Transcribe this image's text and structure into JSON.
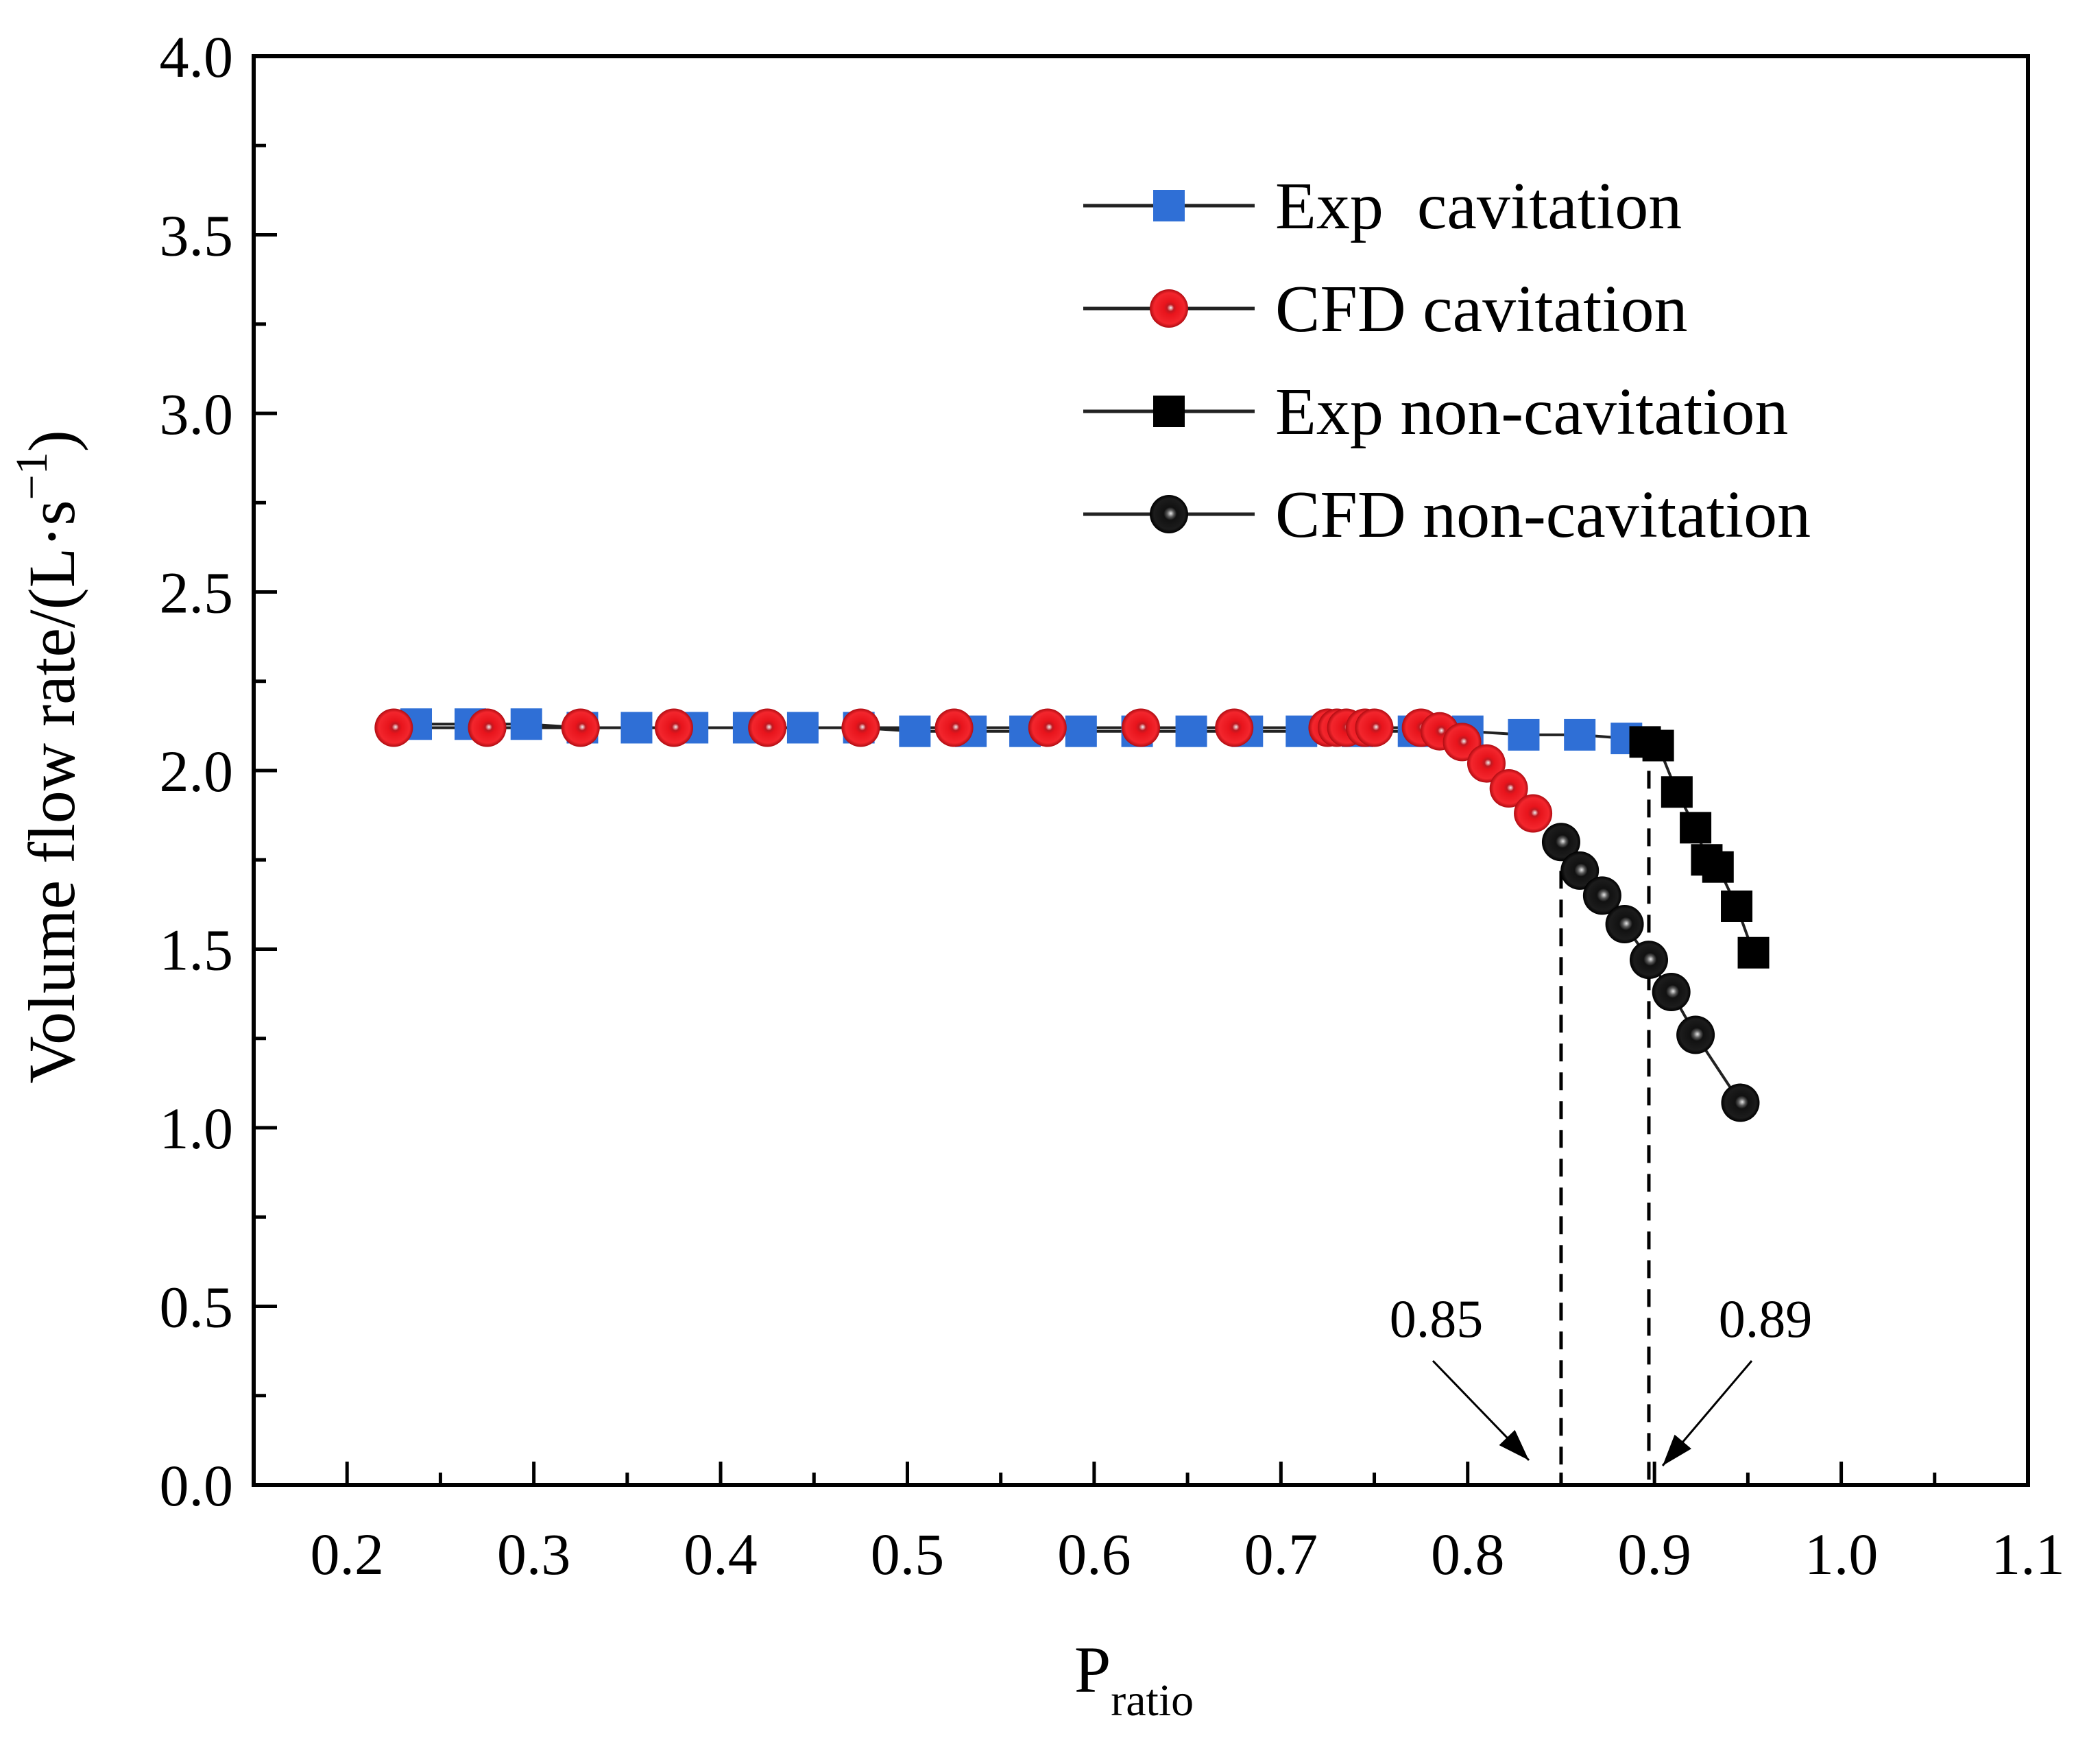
{
  "chart_data": {
    "type": "line",
    "xlabel": "P",
    "xlabel_sub": "ratio",
    "ylabel": "Volume flow rate/(L·s",
    "ylabel_sup": "−1",
    "ylabel_close": ")",
    "xlim": [
      0.15,
      1.1
    ],
    "ylim": [
      0.0,
      4.0
    ],
    "x_ticks": [
      0.2,
      0.3,
      0.4,
      0.5,
      0.6,
      0.7,
      0.8,
      0.9,
      1.0,
      1.1
    ],
    "x_tick_labels": [
      "0.2",
      "0.3",
      "0.4",
      "0.5",
      "0.6",
      "0.7",
      "0.8",
      "0.9",
      "1.0",
      "1.1"
    ],
    "y_ticks": [
      0.0,
      0.5,
      1.0,
      1.5,
      2.0,
      2.5,
      3.0,
      3.5,
      4.0
    ],
    "y_tick_labels": [
      "0.0",
      "0.5",
      "1.0",
      "1.5",
      "2.0",
      "2.5",
      "3.0",
      "3.5",
      "4.0"
    ],
    "legend_position": "top-right",
    "series": [
      {
        "name": "Exp  cavitation",
        "marker": "square",
        "color": "#2f6fd6",
        "x": [
          0.237,
          0.266,
          0.296,
          0.326,
          0.355,
          0.385,
          0.415,
          0.444,
          0.474,
          0.504,
          0.534,
          0.563,
          0.593,
          0.623,
          0.652,
          0.682,
          0.711,
          0.741,
          0.771,
          0.8,
          0.83,
          0.86,
          0.885
        ],
        "y": [
          2.13,
          2.13,
          2.13,
          2.12,
          2.12,
          2.12,
          2.12,
          2.12,
          2.12,
          2.11,
          2.11,
          2.11,
          2.11,
          2.11,
          2.11,
          2.11,
          2.11,
          2.11,
          2.11,
          2.11,
          2.1,
          2.1,
          2.09
        ]
      },
      {
        "name": "CFD cavitation",
        "marker": "sphere",
        "color": "#e8141c",
        "x": [
          0.225,
          0.275,
          0.325,
          0.375,
          0.425,
          0.475,
          0.525,
          0.575,
          0.625,
          0.675,
          0.725,
          0.73,
          0.735,
          0.745,
          0.75,
          0.775,
          0.785,
          0.797,
          0.81,
          0.822,
          0.835
        ],
        "y": [
          2.12,
          2.12,
          2.12,
          2.12,
          2.12,
          2.12,
          2.12,
          2.12,
          2.12,
          2.12,
          2.12,
          2.12,
          2.12,
          2.12,
          2.12,
          2.12,
          2.11,
          2.08,
          2.02,
          1.95,
          1.88
        ]
      },
      {
        "name": "Exp non-cavitation",
        "marker": "square",
        "color": "#000000",
        "x": [
          0.895,
          0.902,
          0.912,
          0.922,
          0.928,
          0.934,
          0.944,
          0.953
        ],
        "y": [
          2.08,
          2.07,
          1.94,
          1.84,
          1.75,
          1.73,
          1.62,
          1.49
        ]
      },
      {
        "name": "CFD non-cavitation",
        "marker": "sphere",
        "color": "#000000",
        "x": [
          0.85,
          0.86,
          0.872,
          0.884,
          0.897,
          0.909,
          0.922,
          0.946
        ],
        "y": [
          1.8,
          1.72,
          1.65,
          1.57,
          1.47,
          1.38,
          1.26,
          1.07
        ]
      }
    ],
    "annotations": [
      {
        "text": "0.85",
        "x": 0.85
      },
      {
        "text": "0.89",
        "x": 0.897
      }
    ]
  }
}
